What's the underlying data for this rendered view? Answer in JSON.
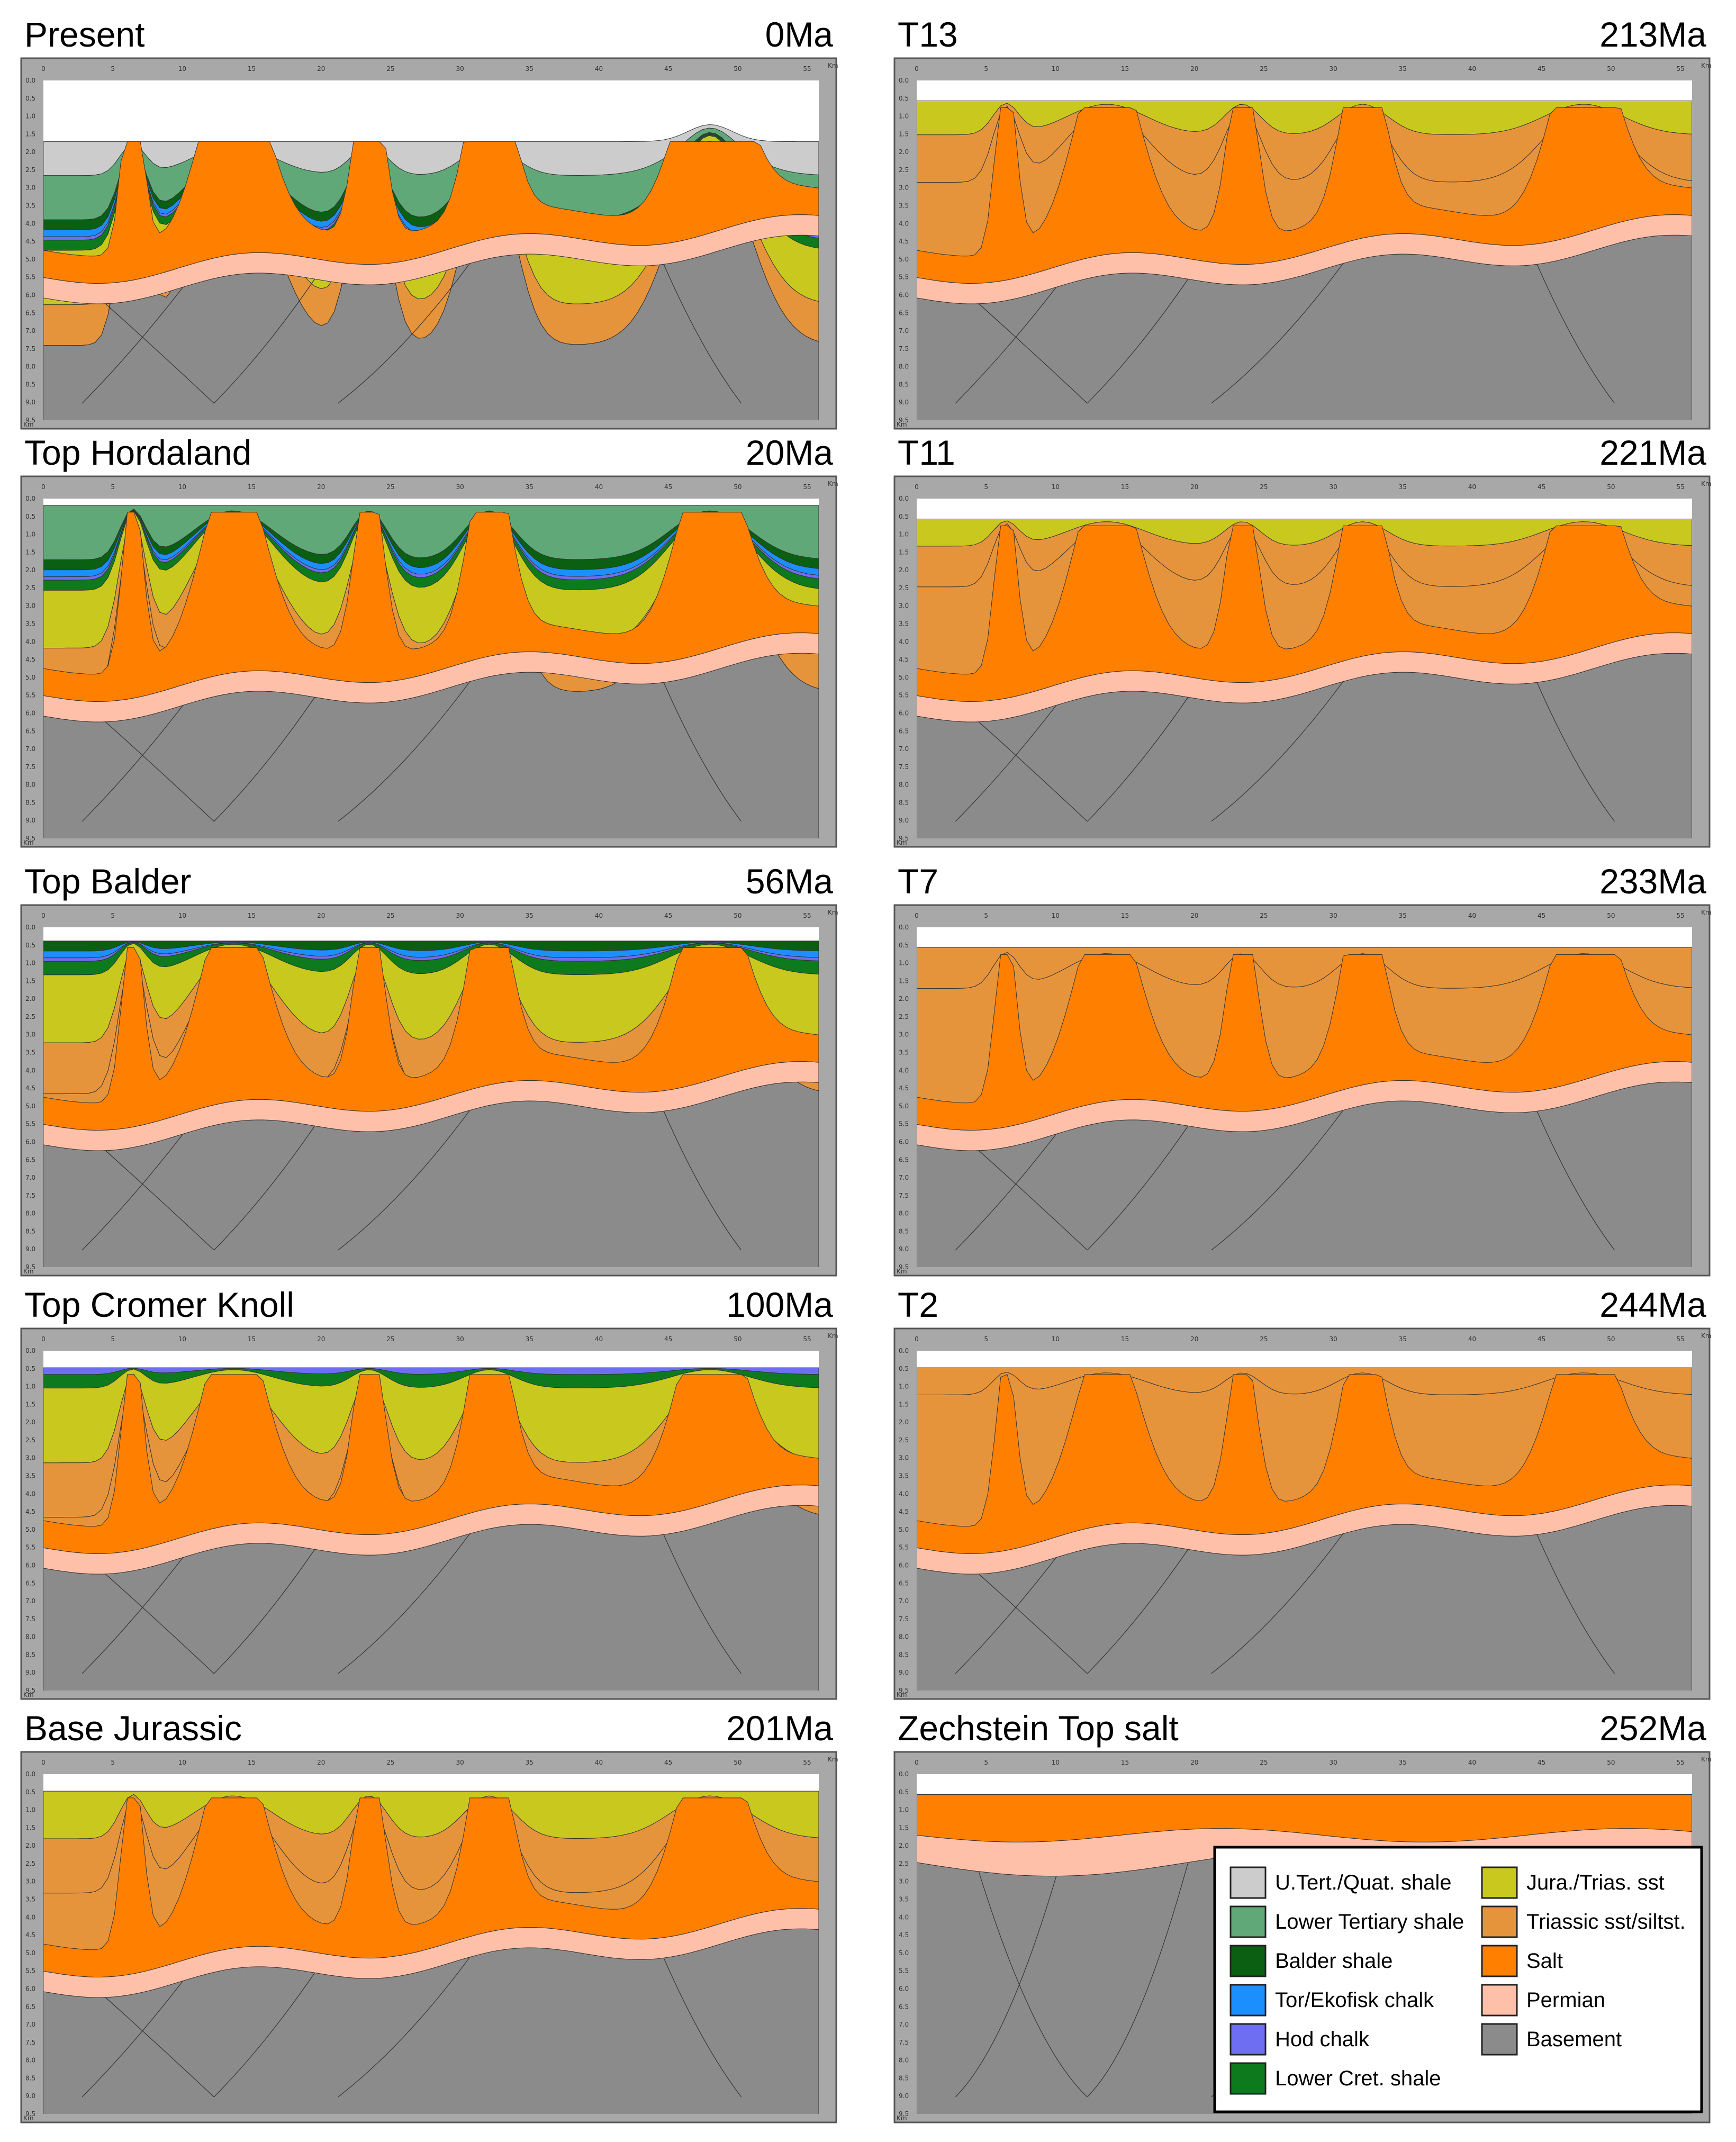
{
  "panels": [
    {
      "title": "Present",
      "age": "0Ma",
      "stage": "present"
    },
    {
      "title": "T13",
      "age": "213Ma",
      "stage": "t13"
    },
    {
      "title": "Top Hordaland",
      "age": "20Ma",
      "stage": "hordaland"
    },
    {
      "title": "T11",
      "age": "221Ma",
      "stage": "t11"
    },
    {
      "title": "Top Balder",
      "age": "56Ma",
      "stage": "balder"
    },
    {
      "title": "T7",
      "age": "233Ma",
      "stage": "t7"
    },
    {
      "title": "Top Cromer Knoll",
      "age": "100Ma",
      "stage": "cromer"
    },
    {
      "title": "T2",
      "age": "244Ma",
      "stage": "t2"
    },
    {
      "title": "Base Jurassic",
      "age": "201Ma",
      "stage": "basejur"
    },
    {
      "title": "Zechstein Top salt",
      "age": "252Ma",
      "stage": "zechstein"
    }
  ],
  "axis": {
    "x_ticks": [
      "0",
      "5",
      "10",
      "15",
      "20",
      "25",
      "30",
      "35",
      "40",
      "45",
      "50",
      "55"
    ],
    "x_unit": "Km",
    "y_ticks": [
      "0.0",
      "0.5",
      "1.0",
      "1.5",
      "2.0",
      "2.5",
      "3.0",
      "3.5",
      "4.0",
      "4.5",
      "5.0",
      "5.5",
      "6.0",
      "6.5",
      "7.0",
      "7.5",
      "8.0",
      "8.5",
      "9.0",
      "9.5"
    ],
    "y_unit": "Km"
  },
  "legend": {
    "left": [
      {
        "label": "U.Tert./Quat. shale",
        "color": "#cccccc"
      },
      {
        "label": "Lower Tertiary shale",
        "color": "#60a878"
      },
      {
        "label": "Balder shale",
        "color": "#0a5f12"
      },
      {
        "label": "Tor/Ekofisk chalk",
        "color": "#1c8fff"
      },
      {
        "label": "Hod chalk",
        "color": "#6e6ef2"
      },
      {
        "label": "Lower Cret. shale",
        "color": "#0e7a1e"
      }
    ],
    "right": [
      {
        "label": "Jura./Trias. sst",
        "color": "#c8c81e"
      },
      {
        "label": "Triassic sst/siltst.",
        "color": "#e6943c"
      },
      {
        "label": "Salt",
        "color": "#ff7f00"
      },
      {
        "label": "Permian",
        "color": "#ffc0aa"
      },
      {
        "label": "Basement",
        "color": "#8b8b8b"
      }
    ]
  },
  "colors": {
    "uquat": "#cccccc",
    "ltert": "#60a878",
    "balder": "#0a5f12",
    "tor": "#1c8fff",
    "hod": "#6e6ef2",
    "lcret": "#0e7a1e",
    "jura": "#c8c81e",
    "trias": "#e6943c",
    "salt": "#ff7f00",
    "permian": "#ffc0aa",
    "basement": "#8b8b8b"
  }
}
